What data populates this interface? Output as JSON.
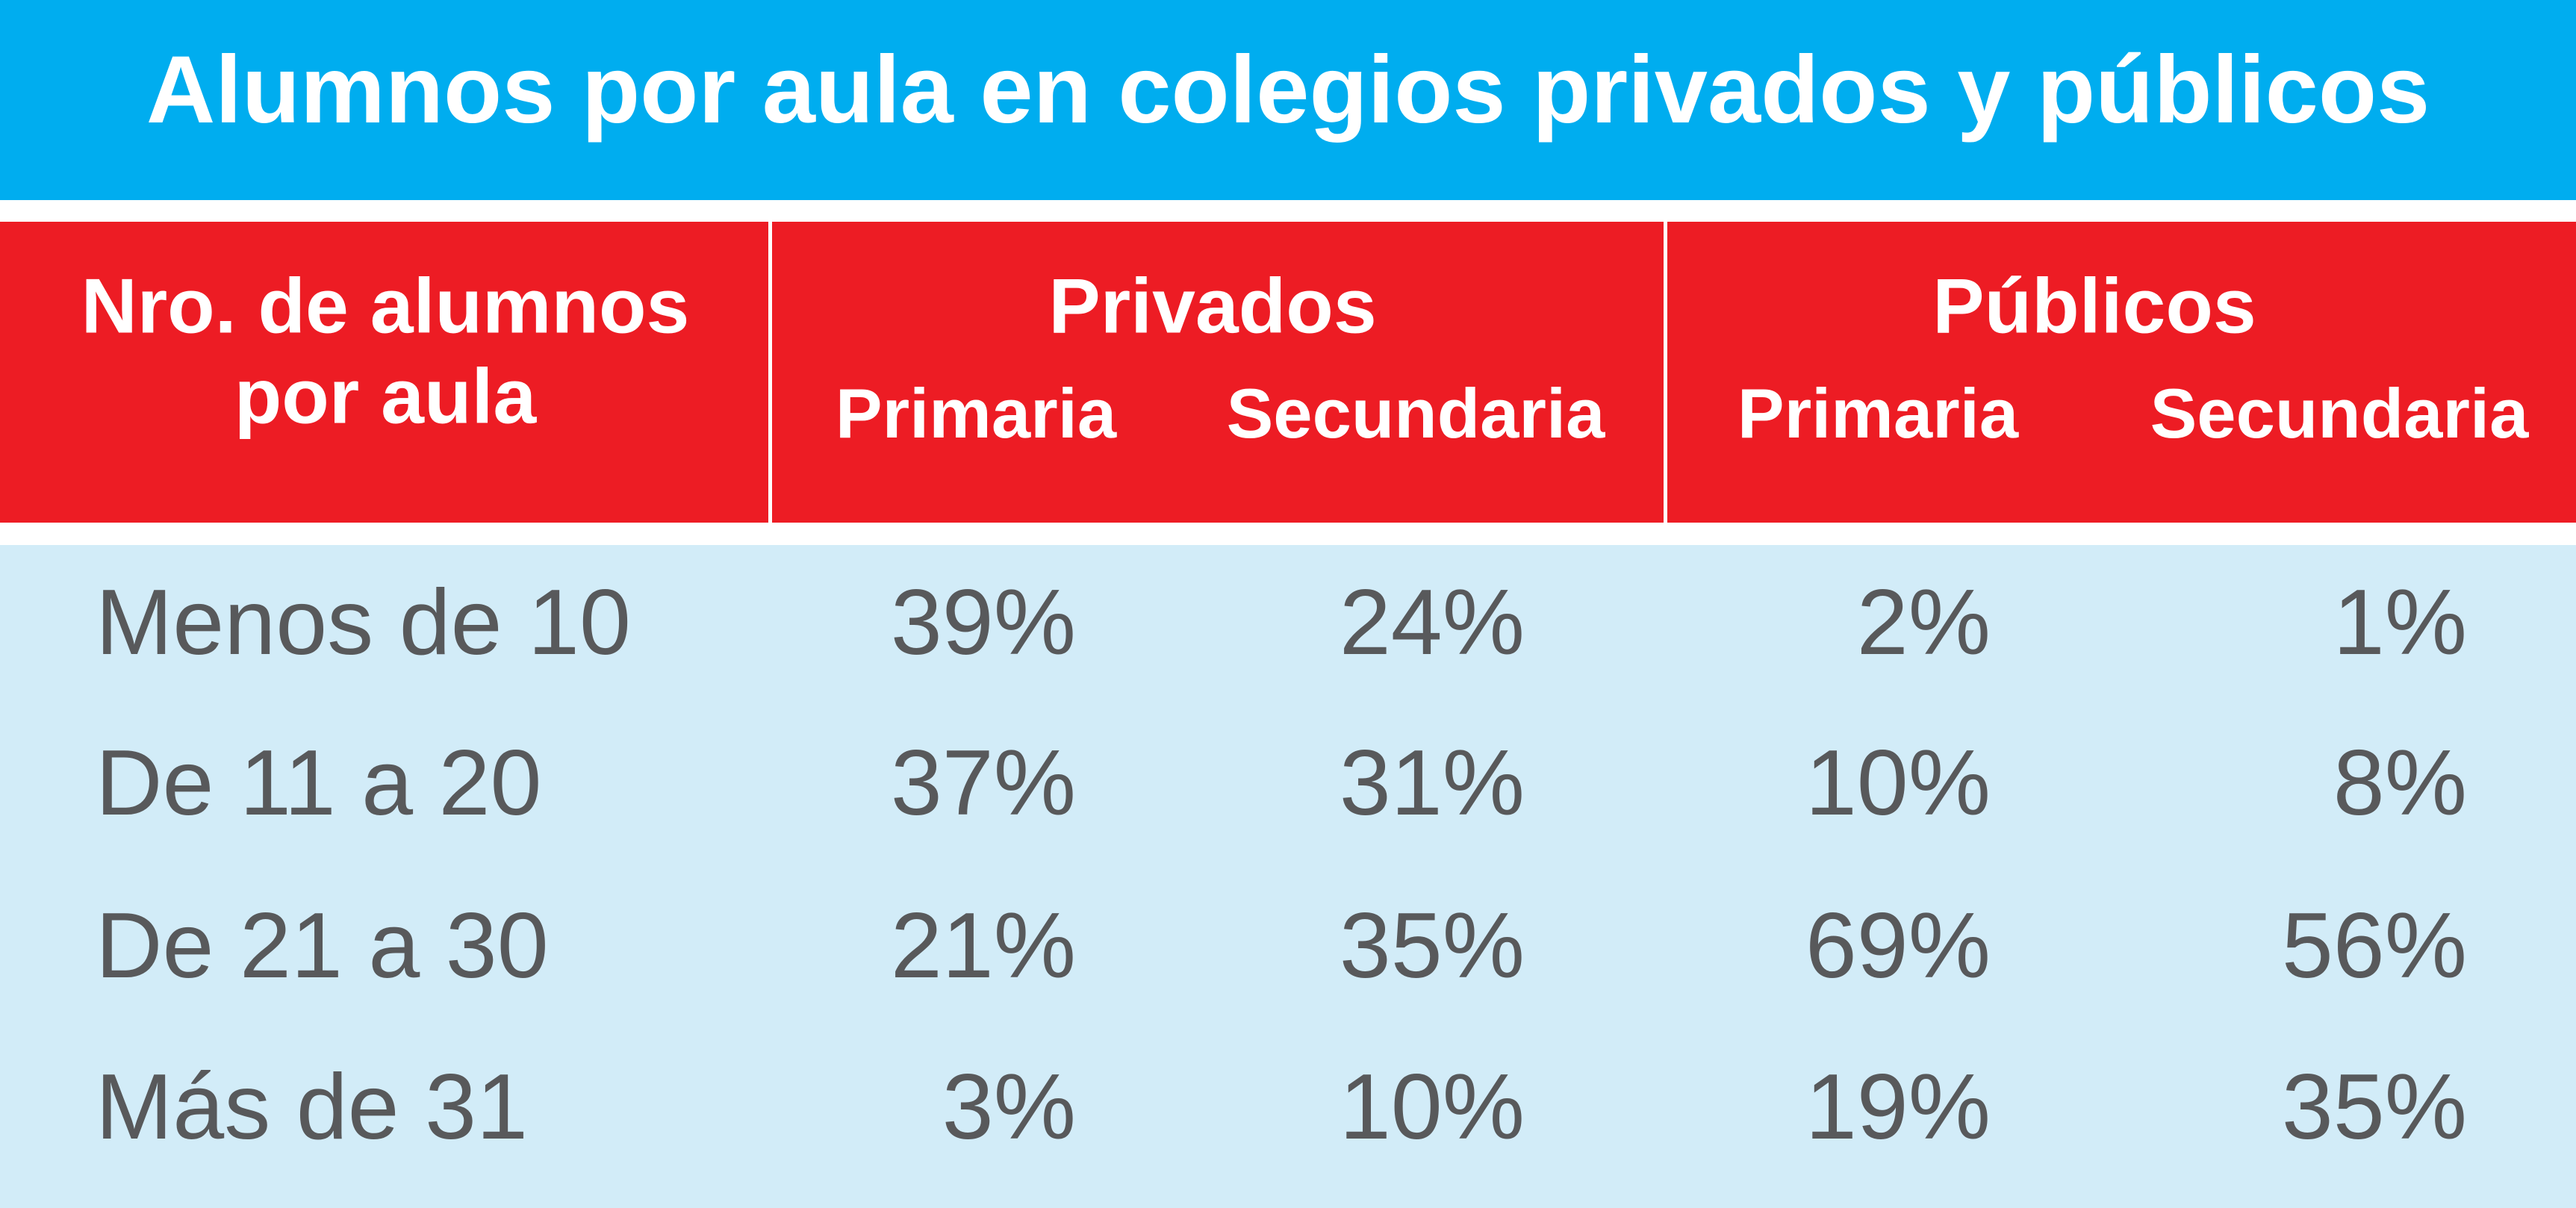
{
  "title": "Alumnos por aula en colegios privados y públicos",
  "table": {
    "row_header": [
      "Nro. de alumnos",
      "por aula"
    ],
    "groups": [
      {
        "label": "Privados",
        "columns": [
          "Primaria",
          "Secundaria"
        ]
      },
      {
        "label": "Públicos",
        "columns": [
          "Primaria",
          "Secundaria"
        ]
      }
    ],
    "rows": [
      [
        "Menos de 10",
        "39%",
        "24%",
        "2%",
        "1%"
      ],
      [
        "De 11 a 20",
        "37%",
        "31%",
        "10%",
        "8%"
      ],
      [
        "De 21 a 30",
        "21%",
        "35%",
        "69%",
        "56%"
      ],
      [
        "Más de 31",
        "3%",
        "10%",
        "19%",
        "35%"
      ]
    ]
  }
}
